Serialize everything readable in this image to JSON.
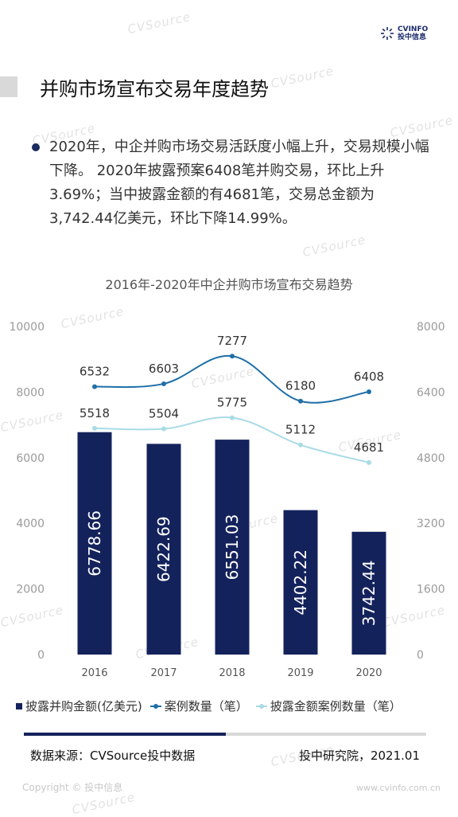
{
  "header": {
    "logo_text_top": "CVINFO",
    "logo_text_bottom": "投中信息",
    "page_title": "并购市场宣布交易年度趋势"
  },
  "summary": {
    "text": "2020年，中企并购市场交易活跃度小幅上升，交易规模小幅下降。 2020年披露预案6408笔并购交易，环比上升3.69%；当中披露金额的有4681笔，交易总金额为3,742.44亿美元，环比下降14.99%。"
  },
  "chart_data": {
    "type": "bar",
    "title": "2016年-2020年中企并购市场宣布交易趋势",
    "categories": [
      "2016",
      "2017",
      "2018",
      "2019",
      "2020"
    ],
    "ylim_left": [
      0,
      10000
    ],
    "yticks_left": [
      "0",
      "2000",
      "4000",
      "6000",
      "8000",
      "10000"
    ],
    "ylim_right": [
      0,
      8000
    ],
    "yticks_right": [
      "0",
      "1600",
      "3200",
      "4800",
      "6400",
      "8000"
    ],
    "series": [
      {
        "name": "披露并购金额(亿美元)",
        "kind": "bar",
        "axis": "left",
        "color": "#14225c",
        "values": [
          6778.66,
          6422.69,
          6551.03,
          4402.22,
          3742.44
        ],
        "labels": [
          "6778.66",
          "6422.69",
          "6551.03",
          "4402.22",
          "3742.44"
        ]
      },
      {
        "name": "案例数量（笔）",
        "kind": "line",
        "axis": "right",
        "color": "#1f6fa8",
        "values": [
          6532,
          6603,
          7277,
          6180,
          6408
        ],
        "labels": [
          "6532",
          "6603",
          "7277",
          "6180",
          "6408"
        ]
      },
      {
        "name": "披露金额案例数量（笔）",
        "kind": "line",
        "axis": "right",
        "color": "#a9dbe6",
        "values": [
          5518,
          5504,
          5775,
          5112,
          4681
        ],
        "labels": [
          "5518",
          "5504",
          "5775",
          "5112",
          "4681"
        ]
      }
    ],
    "grid": false,
    "legend": "bottom"
  },
  "footer": {
    "source": "数据来源：CVSource投中数据",
    "publisher": "投中研究院，2021.01",
    "copyright": "Copyright © 投中信息",
    "site": "www.cvinfo.com.cn"
  },
  "watermark": "CVSource"
}
